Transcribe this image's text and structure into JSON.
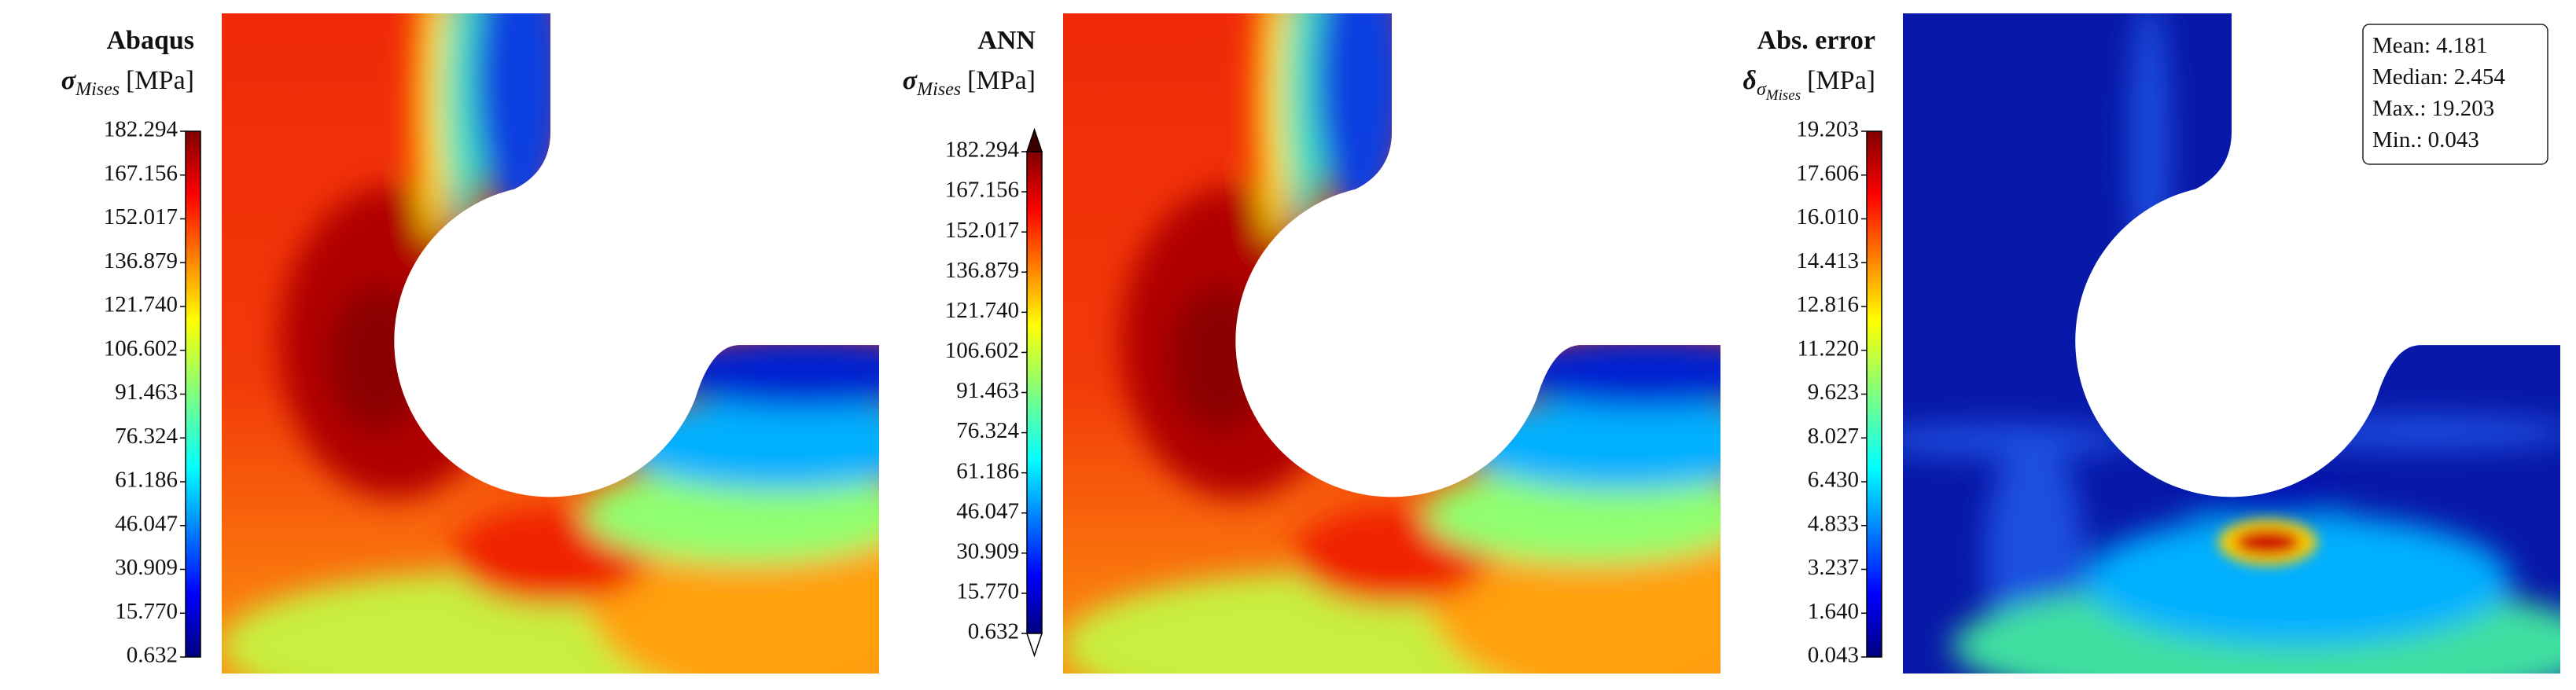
{
  "chart_data": [
    {
      "type": "heatmap",
      "title": "Abaqus",
      "colorbar_label": {
        "symbol": "σ",
        "subscript": "Mises",
        "unit": "[MPa]"
      },
      "colormap": "jet",
      "extend": "neither",
      "zlim": [
        0.632,
        182.294
      ],
      "zticks": [
        0.632,
        {
          "value": 15.77,
          "label": "15.770"
        },
        30.909,
        46.047,
        61.186,
        76.324,
        91.463,
        106.602,
        {
          "value": 121.74,
          "label": "121.740"
        },
        136.879,
        152.017,
        167.156,
        182.294
      ]
    },
    {
      "type": "heatmap",
      "title": "ANN",
      "colorbar_label": {
        "symbol": "σ",
        "subscript": "Mises",
        "unit": "[MPa]"
      },
      "colormap": "jet",
      "extend": "both",
      "zlim": [
        0.632,
        182.294
      ],
      "zticks": [
        0.632,
        {
          "value": 15.77,
          "label": "15.770"
        },
        30.909,
        46.047,
        61.186,
        76.324,
        91.463,
        106.602,
        {
          "value": 121.74,
          "label": "121.740"
        },
        136.879,
        152.017,
        167.156,
        182.294
      ]
    },
    {
      "type": "heatmap",
      "title": "Abs. error",
      "colorbar_label": {
        "symbol": "δ",
        "subscript": "σ",
        "subsubscript": "Mises",
        "unit": "[MPa]"
      },
      "colormap": "jet",
      "extend": "neither",
      "zlim": [
        0.043,
        19.203
      ],
      "zticks": [
        0.043,
        {
          "value": 1.64,
          "label": "1.640"
        },
        3.237,
        4.833,
        {
          "value": 6.43,
          "label": "6.430"
        },
        8.027,
        9.623,
        {
          "value": 11.22,
          "label": "11.220"
        },
        12.816,
        14.413,
        {
          "value": 16.01,
          "label": "16.010"
        },
        17.606,
        19.203
      ],
      "stats": [
        {
          "label": "Mean:",
          "value": 4.181
        },
        {
          "label": "Median:",
          "value": 2.454
        },
        {
          "label": "Max.:",
          "value": 19.203
        },
        {
          "label": "Min.:",
          "value": 0.043
        }
      ]
    }
  ]
}
